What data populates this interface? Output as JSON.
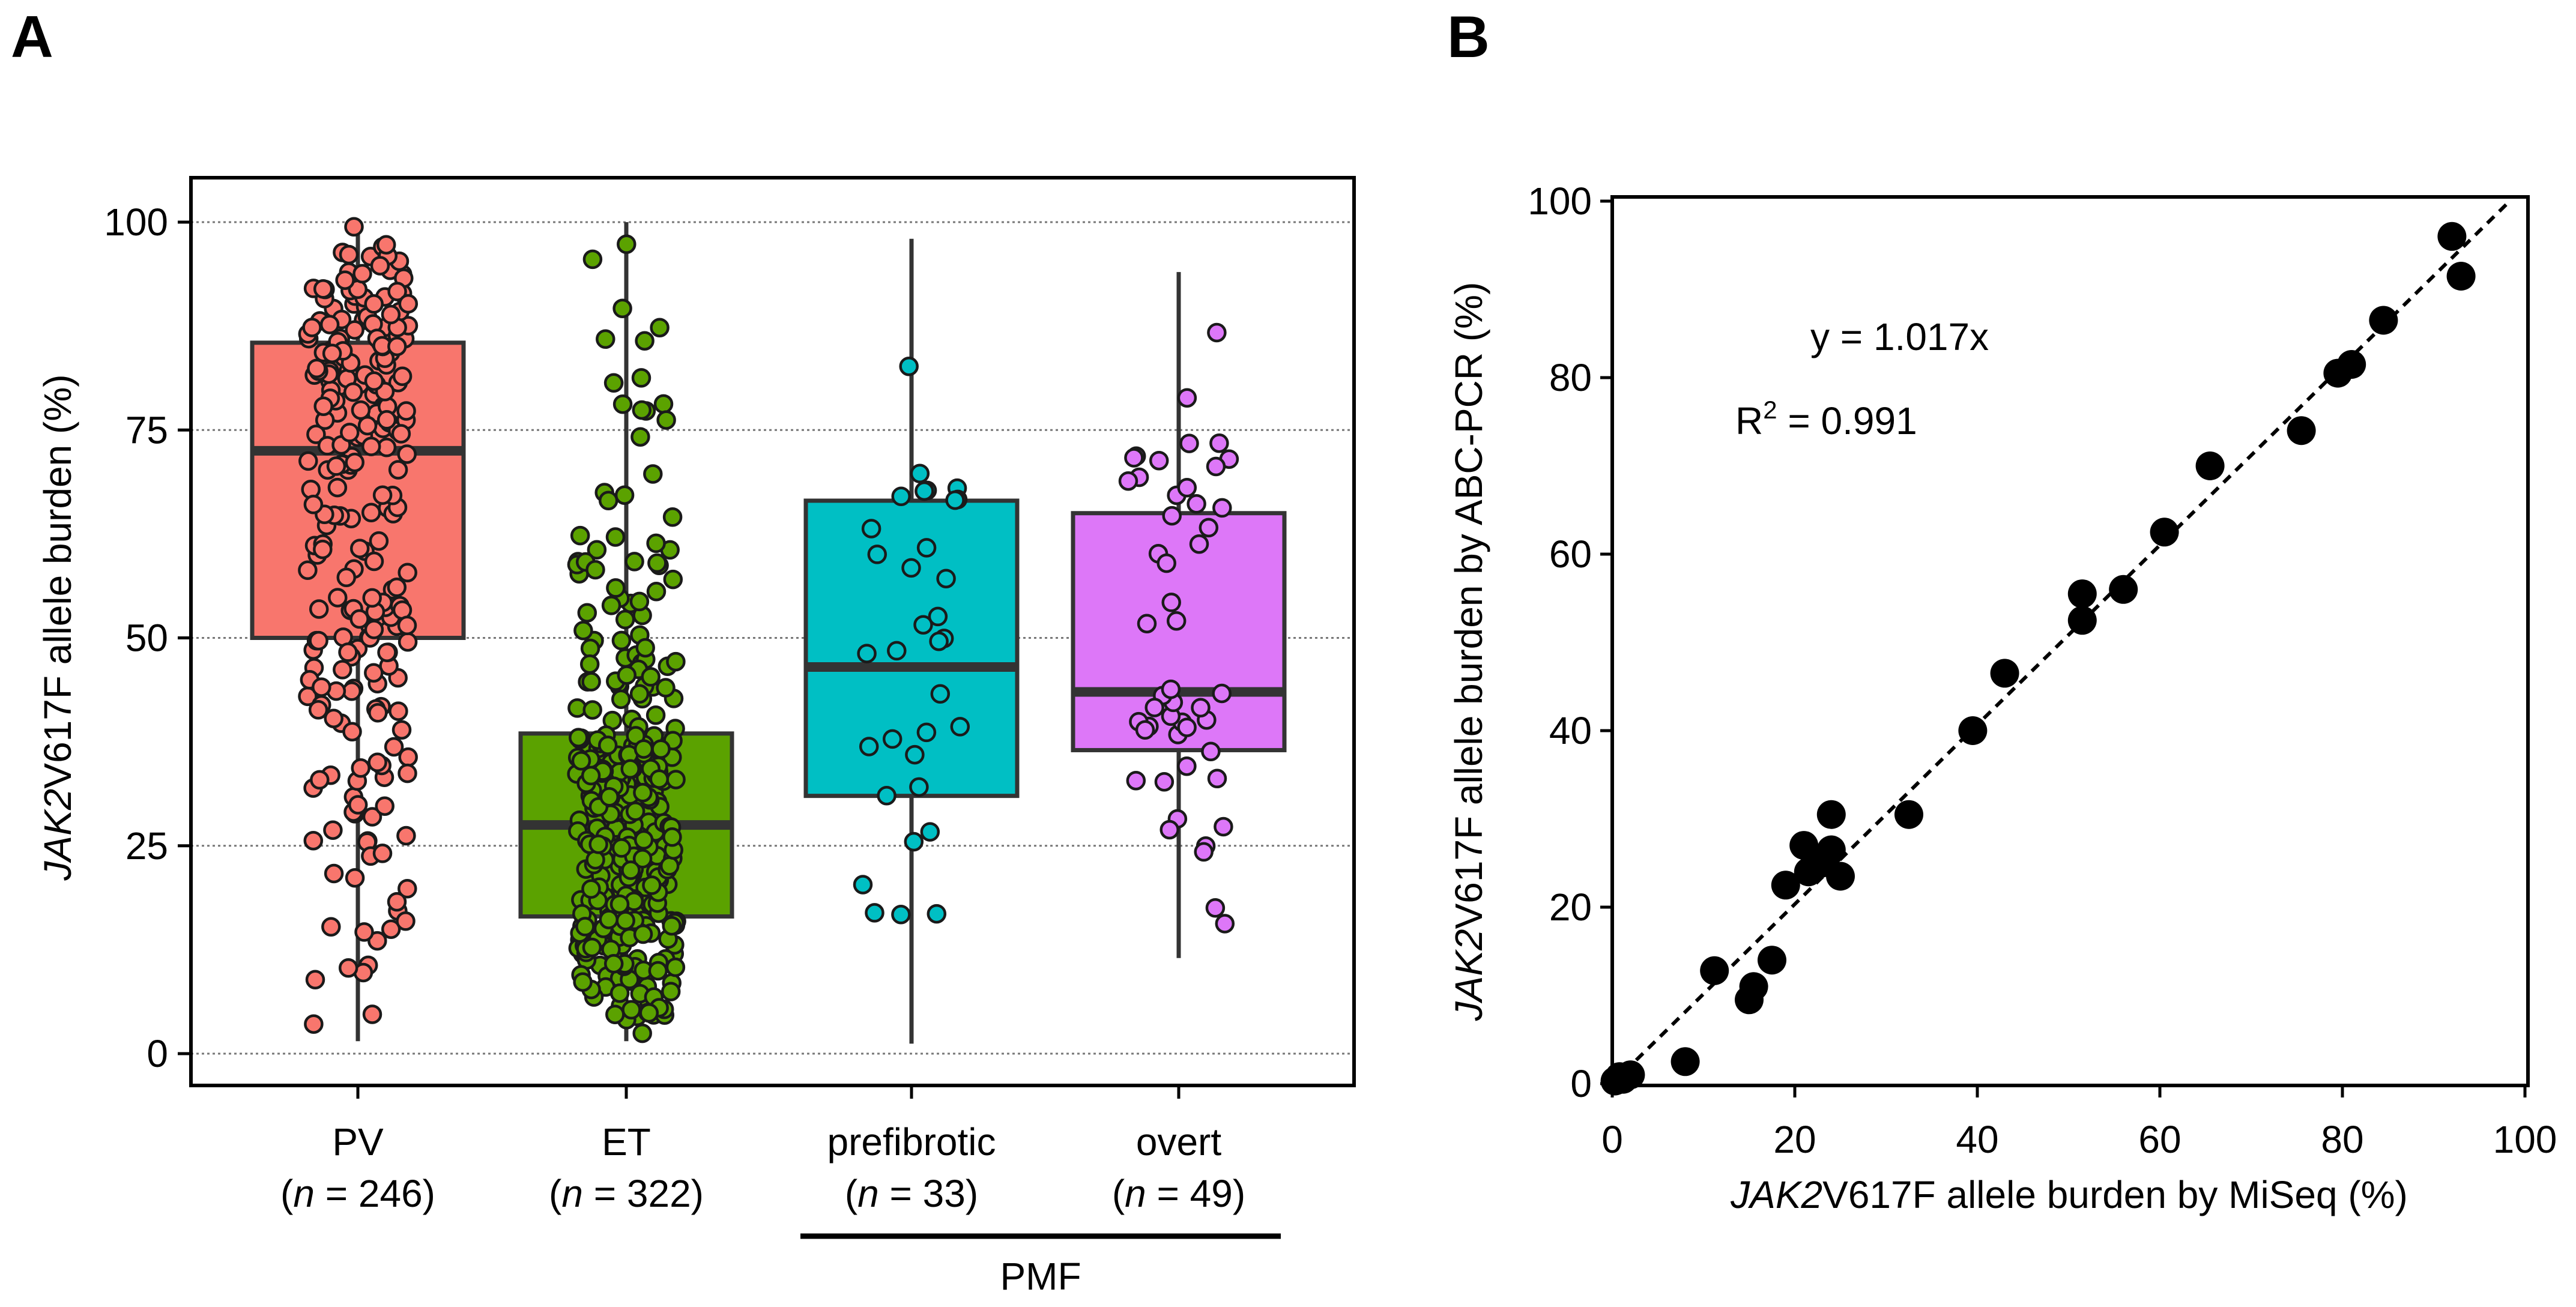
{
  "panels": {
    "a": {
      "letter": "A"
    },
    "b": {
      "letter": "B"
    }
  },
  "chart_data": [
    {
      "type": "box",
      "panel": "A",
      "ylabel_italic": "JAK2",
      "ylabel_rest": "V617F allele burden (%)",
      "ylim": [
        0,
        100
      ],
      "yticks": [
        0,
        25,
        50,
        75,
        100
      ],
      "grid": true,
      "group_label": "PMF",
      "categories": [
        {
          "name": "PV",
          "n_prefix": "(",
          "n_italic": "n",
          "n_suffix": " = 246)",
          "color": "#F8766D",
          "q1": 50,
          "median": 72.5,
          "q3": 85.5,
          "whisker_low": 1.5,
          "whisker_high": 100
        },
        {
          "name": "ET",
          "n_prefix": "(",
          "n_italic": "n",
          "n_suffix": " = 322)",
          "color": "#5BA200",
          "q1": 16.5,
          "median": 27.5,
          "q3": 38.5,
          "whisker_low": 1.5,
          "whisker_high": 100
        },
        {
          "name": "prefibrotic",
          "n_prefix": "(",
          "n_italic": "n",
          "n_suffix": " = 33)",
          "color": "#00BFC4",
          "q1": 31,
          "median": 46.5,
          "q3": 66.5,
          "whisker_low": 1.2,
          "whisker_high": 98
        },
        {
          "name": "overt",
          "n_prefix": "(",
          "n_italic": "n",
          "n_suffix": " = 49)",
          "color": "#DD77F8",
          "q1": 36.5,
          "median": 43.5,
          "q3": 65,
          "whisker_low": 11.5,
          "whisker_high": 94
        }
      ]
    },
    {
      "type": "scatter",
      "panel": "B",
      "xlabel_italic": "JAK2",
      "xlabel_rest": "V617F allele burden by MiSeq (%)",
      "ylabel_italic": "JAK2",
      "ylabel_rest": "V617F allele burden by ABC-PCR (%)",
      "xlim": [
        0,
        100
      ],
      "ylim": [
        0,
        100
      ],
      "xticks": [
        0,
        20,
        40,
        60,
        80,
        100
      ],
      "yticks": [
        0,
        20,
        40,
        60,
        80,
        100
      ],
      "equation": "y = 1.017x",
      "r2_prefix": "R",
      "r2_sup": "2",
      "r2_suffix": " = 0.991",
      "fit_slope": 1.017,
      "x": [
        0.3,
        0.8,
        1.2,
        2.0,
        8.0,
        11.2,
        15.0,
        15.5,
        17.5,
        19.0,
        21.0,
        21.5,
        23.0,
        24.0,
        24.0,
        25.0,
        32.5,
        39.5,
        43.0,
        51.5,
        51.5,
        56.0,
        60.5,
        65.5,
        75.5,
        79.5,
        81.0,
        84.5,
        92.0,
        93.0
      ],
      "y": [
        0.3,
        0.8,
        0.5,
        1.0,
        2.5,
        12.8,
        9.5,
        11.0,
        14.0,
        22.5,
        27.0,
        24.0,
        25.0,
        30.5,
        26.5,
        23.5,
        30.5,
        40.0,
        46.5,
        52.5,
        55.5,
        56.0,
        62.5,
        70.0,
        74.0,
        80.5,
        81.5,
        86.5,
        96.0,
        91.5
      ]
    }
  ]
}
